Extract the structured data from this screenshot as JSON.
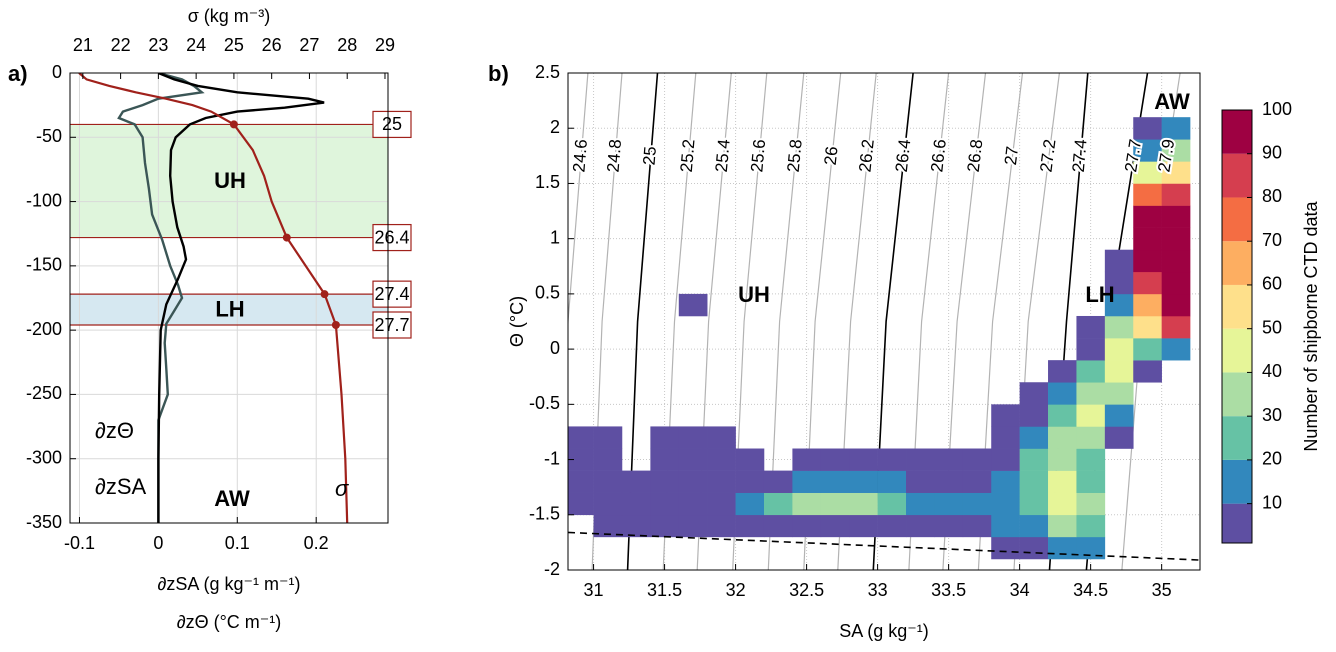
{
  "chart_data": [
    {
      "type": "line",
      "panel_label": "a)",
      "x2label": "σ (kg m⁻³)",
      "xlabel": "∂zSA (g kg⁻¹ m⁻¹)",
      "xlabel_2": "∂zΘ (°C m⁻¹)",
      "xlim": [
        -0.112,
        0.291
      ],
      "xticks": [
        -0.1,
        0,
        0.1,
        0.2
      ],
      "x2lim": [
        20.66,
        29.08
      ],
      "x2ticks": [
        21,
        22,
        23,
        24,
        25,
        26,
        27,
        28,
        29
      ],
      "ylim": [
        -350,
        0
      ],
      "yticks": [
        0,
        -50,
        -100,
        -150,
        -200,
        -250,
        -300,
        -350
      ],
      "grid": true,
      "bands": [
        {
          "name": "UH",
          "depth": [
            -40,
            -128
          ],
          "color": "#dff5dc"
        },
        {
          "name": "LH",
          "depth": [
            -172,
            -196
          ],
          "color": "#d6e8f1"
        }
      ],
      "layers": [
        {
          "sigma": 25,
          "depth": -40
        },
        {
          "sigma": 26.4,
          "depth": -128
        },
        {
          "sigma": 27.4,
          "depth": -172
        },
        {
          "sigma": 27.7,
          "depth": -196
        }
      ],
      "layer_color": "#a0211b",
      "annotations": [
        "AW"
      ],
      "series": [
        {
          "name": "∂zΘ",
          "color": "#3b5656",
          "depth": [
            0,
            -5,
            -10,
            -15,
            -20,
            -25,
            -30,
            -35,
            -40,
            -50,
            -70,
            -90,
            -110,
            -130,
            -150,
            -165,
            -175,
            -185,
            -195,
            -210,
            -230,
            -250,
            -270,
            -300,
            -350
          ],
          "values": [
            0,
            0.03,
            0.045,
            0.055,
            0.0,
            -0.02,
            -0.045,
            -0.05,
            -0.03,
            -0.02,
            -0.017,
            -0.012,
            -0.008,
            0.005,
            0.015,
            0.025,
            0.03,
            0.02,
            0.01,
            0.008,
            0.01,
            0.012,
            0.0,
            0.0,
            0.0
          ]
        },
        {
          "name": "∂zSA",
          "color": "#000000",
          "depth": [
            0,
            -5,
            -10,
            -15,
            -20,
            -23,
            -27,
            -30,
            -35,
            -40,
            -50,
            -60,
            -80,
            -100,
            -120,
            -135,
            -145,
            -160,
            -180,
            -200,
            -250,
            -300,
            -350
          ],
          "values": [
            0,
            0.02,
            0.05,
            0.1,
            0.19,
            0.21,
            0.16,
            0.1,
            0.06,
            0.04,
            0.022,
            0.016,
            0.015,
            0.018,
            0.024,
            0.032,
            0.035,
            0.025,
            0.01,
            0.003,
            0.001,
            0,
            0
          ]
        },
        {
          "name": "σ",
          "color": "#a0211b",
          "axis": "x2",
          "depth": [
            0,
            -5,
            -10,
            -15,
            -20,
            -25,
            -30,
            -40,
            -60,
            -80,
            -100,
            -128,
            -150,
            -172,
            -196,
            -250,
            -300,
            -350
          ],
          "values": [
            20.9,
            21.1,
            21.7,
            22.4,
            23.2,
            23.9,
            24.4,
            25.0,
            25.5,
            25.8,
            26.0,
            26.4,
            26.9,
            27.4,
            27.7,
            27.85,
            27.95,
            28.0
          ]
        }
      ]
    },
    {
      "type": "heatmap",
      "panel_label": "b)",
      "xlabel": "SA (g kg⁻¹)",
      "ylabel": "Θ (°C)",
      "colorbar_label": "Number of shipborne CTD data",
      "xlim": [
        30.82,
        35.27
      ],
      "xticks": [
        31,
        31.5,
        32,
        32.5,
        33,
        33.5,
        34,
        34.5,
        35
      ],
      "ylim": [
        -2,
        2.5
      ],
      "yticks": [
        -2,
        -1.5,
        -1,
        -0.5,
        0,
        0.5,
        1,
        1.5,
        2,
        2.5
      ],
      "grid": true,
      "clim": [
        1,
        100
      ],
      "cticks": [
        10,
        20,
        30,
        40,
        50,
        60,
        70,
        80,
        90,
        100
      ],
      "colormap": [
        "#5e4fa2",
        "#3288bd",
        "#66c2a5",
        "#abdda4",
        "#e6f598",
        "#fee08b",
        "#fdae61",
        "#f46d43",
        "#d53e4f",
        "#9e0142"
      ],
      "x_bins": [
        30.8,
        31.0,
        31.2,
        31.4,
        31.6,
        31.8,
        32.0,
        32.2,
        32.4,
        32.6,
        32.8,
        33.0,
        33.2,
        33.4,
        33.6,
        33.8,
        34.0,
        34.2,
        34.4,
        34.6,
        34.8,
        35.0,
        35.2
      ],
      "y_bins": [
        -1.9,
        -1.7,
        -1.5,
        -1.3,
        -1.1,
        -0.9,
        -0.7,
        -0.5,
        -0.3,
        -0.1,
        0.1,
        0.3,
        0.5,
        0.7,
        0.9,
        1.1,
        1.3,
        1.5,
        1.7,
        1.9,
        2.1
      ],
      "counts": [
        [
          null,
          null,
          null,
          null,
          null,
          null,
          null,
          null,
          null,
          null,
          null,
          null,
          null,
          null,
          null,
          5,
          10,
          20,
          15,
          null,
          null,
          null
        ],
        [
          null,
          5,
          5,
          5,
          5,
          5,
          5,
          5,
          8,
          10,
          10,
          10,
          8,
          8,
          8,
          12,
          20,
          35,
          30,
          null,
          null,
          null
        ],
        [
          5,
          5,
          8,
          8,
          10,
          10,
          15,
          25,
          35,
          40,
          35,
          30,
          20,
          15,
          12,
          15,
          25,
          45,
          35,
          null,
          null,
          null
        ],
        [
          5,
          8,
          5,
          8,
          5,
          8,
          10,
          10,
          15,
          15,
          12,
          12,
          10,
          10,
          10,
          15,
          30,
          50,
          30,
          null,
          null,
          null
        ],
        [
          5,
          5,
          null,
          5,
          5,
          5,
          5,
          null,
          5,
          5,
          5,
          5,
          5,
          5,
          8,
          10,
          25,
          40,
          30,
          null,
          null,
          null
        ],
        [
          5,
          5,
          null,
          5,
          5,
          5,
          null,
          null,
          null,
          null,
          null,
          null,
          null,
          null,
          null,
          5,
          15,
          35,
          40,
          10,
          null,
          null
        ],
        [
          null,
          null,
          null,
          null,
          null,
          null,
          null,
          null,
          null,
          null,
          null,
          null,
          null,
          null,
          null,
          5,
          10,
          30,
          45,
          20,
          null,
          null
        ],
        [
          null,
          null,
          null,
          null,
          null,
          null,
          null,
          null,
          null,
          null,
          null,
          null,
          null,
          null,
          null,
          null,
          5,
          15,
          40,
          35,
          null,
          null
        ],
        [
          null,
          null,
          null,
          null,
          null,
          null,
          null,
          null,
          null,
          null,
          null,
          null,
          null,
          null,
          null,
          null,
          null,
          5,
          25,
          45,
          10,
          null
        ],
        [
          null,
          null,
          null,
          null,
          null,
          null,
          null,
          null,
          null,
          null,
          null,
          null,
          null,
          null,
          null,
          null,
          null,
          null,
          10,
          50,
          30,
          20
        ],
        [
          null,
          null,
          null,
          null,
          null,
          null,
          null,
          null,
          null,
          null,
          null,
          null,
          null,
          null,
          null,
          null,
          null,
          null,
          5,
          40,
          60,
          90
        ],
        [
          null,
          null,
          null,
          null,
          5,
          null,
          null,
          null,
          null,
          null,
          null,
          null,
          null,
          null,
          null,
          null,
          null,
          null,
          null,
          20,
          70,
          100
        ],
        [
          null,
          null,
          null,
          null,
          null,
          null,
          null,
          null,
          null,
          null,
          null,
          null,
          null,
          null,
          null,
          null,
          null,
          null,
          null,
          10,
          85,
          100
        ],
        [
          null,
          null,
          null,
          null,
          null,
          null,
          null,
          null,
          null,
          null,
          null,
          null,
          null,
          null,
          null,
          null,
          null,
          null,
          null,
          5,
          95,
          100
        ],
        [
          null,
          null,
          null,
          null,
          null,
          null,
          null,
          null,
          null,
          null,
          null,
          null,
          null,
          null,
          null,
          null,
          null,
          null,
          null,
          null,
          100,
          100
        ],
        [
          null,
          null,
          null,
          null,
          null,
          null,
          null,
          null,
          null,
          null,
          null,
          null,
          null,
          null,
          null,
          null,
          null,
          null,
          null,
          null,
          95,
          100
        ],
        [
          null,
          null,
          null,
          null,
          null,
          null,
          null,
          null,
          null,
          null,
          null,
          null,
          null,
          null,
          null,
          null,
          null,
          null,
          null,
          null,
          80,
          90
        ],
        [
          null,
          null,
          null,
          null,
          null,
          null,
          null,
          null,
          null,
          null,
          null,
          null,
          null,
          null,
          null,
          null,
          null,
          null,
          null,
          null,
          50,
          60
        ],
        [
          null,
          null,
          null,
          null,
          null,
          null,
          null,
          null,
          null,
          null,
          null,
          null,
          null,
          null,
          null,
          null,
          null,
          null,
          null,
          null,
          20,
          40
        ],
        [
          null,
          null,
          null,
          null,
          null,
          null,
          null,
          null,
          null,
          null,
          null,
          null,
          null,
          null,
          null,
          null,
          null,
          null,
          null,
          null,
          10,
          15
        ]
      ],
      "isopycnal_theta": [
        -2,
        0.25,
        2.5
      ],
      "isopycnals": [
        {
          "level": 24.6,
          "color": "#b3b3b3",
          "sa": [
            30.75,
            30.82,
            30.96
          ]
        },
        {
          "level": 24.8,
          "color": "#b3b3b3",
          "sa": [
            30.99,
            31.06,
            31.2
          ]
        },
        {
          "level": 25,
          "color": "#000000",
          "sa": [
            31.24,
            31.31,
            31.45
          ]
        },
        {
          "level": 25.2,
          "color": "#b3b3b3",
          "sa": [
            31.49,
            31.57,
            31.72
          ]
        },
        {
          "level": 25.4,
          "color": "#b3b3b3",
          "sa": [
            31.73,
            31.81,
            31.97
          ]
        },
        {
          "level": 25.6,
          "color": "#b3b3b3",
          "sa": [
            31.98,
            32.06,
            32.22
          ]
        },
        {
          "level": 25.8,
          "color": "#b3b3b3",
          "sa": [
            32.23,
            32.31,
            32.48
          ]
        },
        {
          "level": 26,
          "color": "#b3b3b3",
          "sa": [
            32.48,
            32.56,
            32.74
          ]
        },
        {
          "level": 26.2,
          "color": "#b3b3b3",
          "sa": [
            32.72,
            32.81,
            32.99
          ]
        },
        {
          "level": 26.4,
          "color": "#000000",
          "sa": [
            32.97,
            33.06,
            33.25
          ]
        },
        {
          "level": 26.6,
          "color": "#b3b3b3",
          "sa": [
            33.22,
            33.31,
            33.5
          ]
        },
        {
          "level": 26.8,
          "color": "#b3b3b3",
          "sa": [
            33.46,
            33.56,
            33.76
          ]
        },
        {
          "level": 27,
          "color": "#b3b3b3",
          "sa": [
            33.71,
            33.81,
            34.02
          ]
        },
        {
          "level": 27.2,
          "color": "#b3b3b3",
          "sa": [
            33.96,
            34.06,
            34.28
          ]
        },
        {
          "level": 27.4,
          "color": "#000000",
          "sa": [
            34.21,
            34.33,
            34.48
          ]
        },
        {
          "level": 27.7,
          "color": "#000000",
          "sa": [
            34.47,
            34.62,
            34.9
          ]
        },
        {
          "level": 27.9,
          "color": "#b3b3b3",
          "sa": [
            34.72,
            34.86,
            35.13
          ]
        }
      ],
      "freezing_line": {
        "sa": [
          30.82,
          35.27
        ],
        "theta": [
          -1.66,
          -1.91
        ]
      },
      "annotations": [
        "UH",
        "LH",
        "AW"
      ]
    }
  ]
}
